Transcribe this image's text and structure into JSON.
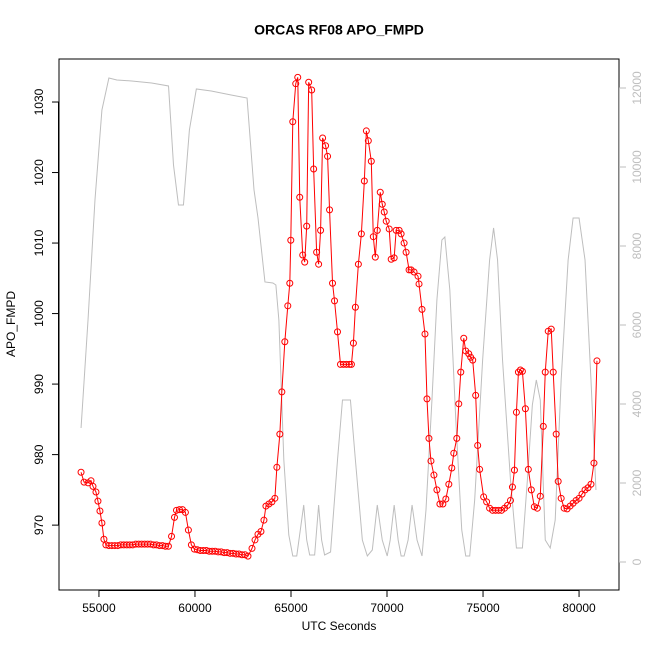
{
  "chart_data": {
    "type": "line",
    "title": "ORCAS RF08 APO_FMPD",
    "xlabel": "UTC Seconds",
    "ylabel": "APO_FMPD",
    "xlim": [
      52920,
      82080
    ],
    "ylim": [
      960.8,
      1036.1
    ],
    "y2lim": [
      -709,
      12734
    ],
    "xticks": [
      55000,
      60000,
      65000,
      70000,
      75000,
      80000
    ],
    "yticks": [
      970,
      980,
      990,
      1000,
      1010,
      1020,
      1030
    ],
    "y2ticks": [
      0,
      2000,
      4000,
      6000,
      8000,
      10000,
      12000
    ],
    "series": [
      {
        "color": "#ff0000",
        "marker": "circle",
        "x": [
          54068,
          54223,
          54430,
          54586,
          54690,
          54845,
          54948,
          55052,
          55155,
          55259,
          55362,
          55517,
          55672,
          55827,
          55982,
          56137,
          56292,
          56447,
          56602,
          56757,
          56912,
          57067,
          57222,
          57377,
          57532,
          57687,
          57842,
          57997,
          58152,
          58307,
          58462,
          58617,
          58780,
          58934,
          59037,
          59192,
          59348,
          59503,
          59658,
          59813,
          59969,
          60124,
          60279,
          60434,
          60589,
          60744,
          60899,
          61054,
          61209,
          61364,
          61519,
          61674,
          61829,
          61984,
          62139,
          62294,
          62449,
          62604,
          62760,
          62970,
          63126,
          63281,
          63436,
          63592,
          63696,
          63850,
          64006,
          64161,
          64265,
          64420,
          64524,
          64679,
          64834,
          64938,
          64990,
          65093,
          65248,
          65352,
          65455,
          65611,
          65714,
          65818,
          65921,
          66077,
          66180,
          66335,
          66439,
          66542,
          66646,
          66801,
          66905,
          67008,
          67163,
          67267,
          67422,
          67577,
          67732,
          67887,
          68042,
          68147,
          68250,
          68354,
          68509,
          68665,
          68820,
          68924,
          69027,
          69182,
          69286,
          69390,
          69493,
          69648,
          69752,
          69855,
          69959,
          70114,
          70218,
          70373,
          70476,
          70632,
          70735,
          70890,
          70994,
          71149,
          71253,
          71408,
          71615,
          71667,
          71822,
          71977,
          72081,
          72184,
          72288,
          72443,
          72598,
          72754,
          72909,
          73064,
          73219,
          73374,
          73478,
          73634,
          73737,
          73841,
          73996,
          74100,
          74255,
          74358,
          74462,
          74617,
          74721,
          74824,
          75031,
          75187,
          75342,
          75497,
          75652,
          75807,
          75963,
          76118,
          76273,
          76429,
          76532,
          76636,
          76739,
          76843,
          76946,
          77050,
          77205,
          77360,
          77515,
          77671,
          77826,
          77981,
          78137,
          78240,
          78395,
          78551,
          78654,
          78810,
          78913,
          79068,
          79224,
          79379,
          79534,
          79689,
          79845,
          80000,
          80155,
          80311,
          80466,
          80621,
          80776,
          80932
        ],
        "values": [
          977.5,
          976.1,
          976,
          976.3,
          975.5,
          974.7,
          973.4,
          972,
          970.3,
          968,
          967.2,
          967.1,
          967.1,
          967.1,
          967.1,
          967.2,
          967.2,
          967.2,
          967.2,
          967.2,
          967.3,
          967.3,
          967.3,
          967.3,
          967.3,
          967.3,
          967.2,
          967.2,
          967.1,
          967.1,
          967,
          967,
          968.4,
          971.1,
          972.1,
          972.2,
          972.2,
          971.8,
          969.3,
          967.2,
          966.6,
          966.5,
          966.4,
          966.4,
          966.4,
          966.3,
          966.3,
          966.3,
          966.2,
          966.2,
          966.1,
          966.1,
          966,
          966,
          965.9,
          965.9,
          965.8,
          965.8,
          965.6,
          966.7,
          967.9,
          968.7,
          969.1,
          970.7,
          972.7,
          973,
          973.3,
          973.8,
          978.2,
          982.9,
          988.9,
          996,
          1001.1,
          1004.3,
          1010.4,
          1027.2,
          1032.6,
          1033.5,
          1016.5,
          1008.3,
          1007.3,
          1012.4,
          1032.8,
          1031.7,
          1020.5,
          1008.7,
          1007,
          1011.8,
          1024.9,
          1023.8,
          1022.3,
          1014.7,
          1004.3,
          1001.8,
          997.4,
          992.8,
          992.8,
          992.8,
          992.8,
          992.8,
          995.8,
          1000.9,
          1007,
          1011.3,
          1018.8,
          1025.9,
          1024.5,
          1021.6,
          1010.9,
          1008,
          1011.8,
          1017.2,
          1015.5,
          1014.4,
          1013.1,
          1012,
          1007.7,
          1007.9,
          1011.8,
          1011.8,
          1011.3,
          1010,
          1008.7,
          1006.2,
          1006.2,
          1005.9,
          1005.3,
          1004.2,
          1000.6,
          997.1,
          987.9,
          982.3,
          979.1,
          977.1,
          975,
          973,
          973,
          973.7,
          975.8,
          978.1,
          980.2,
          982.3,
          987.2,
          991.7,
          996.5,
          994.7,
          994.3,
          993.8,
          993.4,
          988.4,
          981.3,
          977.9,
          974,
          973.3,
          972.4,
          972.1,
          972.1,
          972.1,
          972.1,
          972.4,
          972.8,
          973.5,
          975.4,
          977.8,
          986,
          991.7,
          992,
          991.8,
          986.5,
          977.9,
          975,
          972.6,
          972.4,
          974.1,
          984,
          991.7,
          997.5,
          997.8,
          991.7,
          982.9,
          976.2,
          973.8,
          972.4,
          972.3,
          972.7,
          973.1,
          973.5,
          973.8,
          974.4,
          975,
          975.3,
          975.8,
          978.8,
          993.3
        ]
      },
      {
        "color": "#bebebe",
        "axis": "y2",
        "x": [
          54068,
          54431,
          54793,
          55155,
          55518,
          55932,
          56708,
          57743,
          58623,
          58882,
          59141,
          59400,
          59710,
          60072,
          60849,
          61884,
          62712,
          63075,
          63282,
          63644,
          64058,
          64213,
          64369,
          64627,
          64886,
          65093,
          65300,
          65663,
          65818,
          65973,
          66232,
          66439,
          66594,
          66750,
          67060,
          67422,
          67681,
          68095,
          68354,
          68716,
          68975,
          69234,
          69493,
          69752,
          70010,
          70166,
          70373,
          70580,
          70735,
          70891,
          71098,
          71304,
          71563,
          71822,
          72029,
          72340,
          72598,
          72857,
          73012,
          73271,
          73582,
          73892,
          74099,
          74306,
          74565,
          74979,
          75342,
          75549,
          75756,
          76015,
          76429,
          76739,
          77050,
          77309,
          77568,
          77774,
          77981,
          78240,
          78499,
          78758,
          79068,
          79431,
          79690,
          80000,
          80311,
          80621,
          80880
        ],
        "values": [
          3392,
          6127,
          9165,
          11443,
          12253,
          12203,
          12177,
          12127,
          12051,
          10051,
          9038,
          9038,
          10937,
          11975,
          11924,
          11823,
          11747,
          9418,
          8709,
          7089,
          7063,
          7013,
          6127,
          2582,
          684,
          152,
          152,
          1443,
          557,
          177,
          177,
          1443,
          557,
          177,
          253,
          2582,
          4101,
          4101,
          2582,
          557,
          152,
          304,
          1443,
          557,
          152,
          557,
          1443,
          557,
          152,
          152,
          557,
          1443,
          557,
          152,
          1316,
          4101,
          6633,
          8152,
          8228,
          6886,
          3595,
          810,
          152,
          152,
          1570,
          5114,
          7646,
          8456,
          7646,
          5114,
          2076,
          354,
          354,
          2076,
          3975,
          4608,
          4101,
          557,
          354,
          1063,
          4608,
          7646,
          8709,
          8709,
          7646,
          4608,
          1823
        ]
      }
    ]
  }
}
